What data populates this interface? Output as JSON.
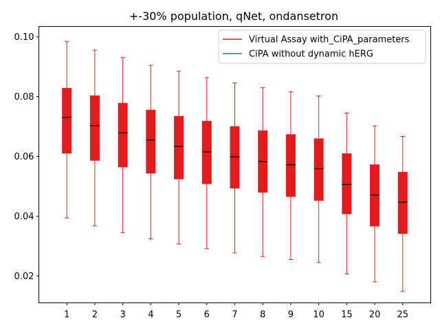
{
  "chart_data": {
    "type": "box",
    "title": "+-30% population, qNet, ondansetron",
    "xlabel": "",
    "ylabel": "",
    "categories": [
      "1",
      "2",
      "3",
      "4",
      "5",
      "6",
      "7",
      "8",
      "9",
      "10",
      "15",
      "20",
      "25"
    ],
    "ylim": [
      0.011,
      0.1035
    ],
    "yticks": [
      0.02,
      0.04,
      0.06,
      0.08,
      0.1
    ],
    "ytick_labels": [
      "0.02",
      "0.04",
      "0.06",
      "0.08",
      "0.10"
    ],
    "grid": false,
    "legend": {
      "placement": "top-right",
      "entries": [
        {
          "label": "Virtual Assay with_CiPA_parameters",
          "color": "#e41a1c"
        },
        {
          "label": "CiPA without dynamic hERG",
          "color": "#1f77b4"
        }
      ]
    },
    "series": [
      {
        "name": "Virtual Assay with_CiPA_parameters",
        "color": "#e41a1c",
        "boxes": [
          {
            "whislo": 0.0394,
            "q1": 0.0611,
            "med": 0.0731,
            "q3": 0.0828,
            "whishi": 0.0985
          },
          {
            "whislo": 0.0368,
            "q1": 0.0587,
            "med": 0.0703,
            "q3": 0.0803,
            "whishi": 0.0956
          },
          {
            "whislo": 0.0345,
            "q1": 0.0565,
            "med": 0.0679,
            "q3": 0.0778,
            "whishi": 0.0931
          },
          {
            "whislo": 0.0324,
            "q1": 0.0544,
            "med": 0.0655,
            "q3": 0.0755,
            "whishi": 0.0905
          },
          {
            "whislo": 0.0307,
            "q1": 0.0525,
            "med": 0.0634,
            "q3": 0.0734,
            "whishi": 0.0885
          },
          {
            "whislo": 0.0291,
            "q1": 0.0509,
            "med": 0.0615,
            "q3": 0.0718,
            "whishi": 0.0864
          },
          {
            "whislo": 0.0277,
            "q1": 0.0494,
            "med": 0.0599,
            "q3": 0.07,
            "whishi": 0.0846
          },
          {
            "whislo": 0.0265,
            "q1": 0.048,
            "med": 0.0583,
            "q3": 0.0686,
            "whishi": 0.083
          },
          {
            "whislo": 0.0255,
            "q1": 0.0466,
            "med": 0.0572,
            "q3": 0.0673,
            "whishi": 0.0816
          },
          {
            "whislo": 0.0245,
            "q1": 0.0453,
            "med": 0.0559,
            "q3": 0.0659,
            "whishi": 0.0802
          },
          {
            "whislo": 0.0207,
            "q1": 0.0408,
            "med": 0.0506,
            "q3": 0.0609,
            "whishi": 0.0745
          },
          {
            "whislo": 0.018,
            "q1": 0.0367,
            "med": 0.0471,
            "q3": 0.0572,
            "whishi": 0.0702
          },
          {
            "whislo": 0.0148,
            "q1": 0.0342,
            "med": 0.0447,
            "q3": 0.0547,
            "whishi": 0.0667
          }
        ]
      }
    ]
  }
}
